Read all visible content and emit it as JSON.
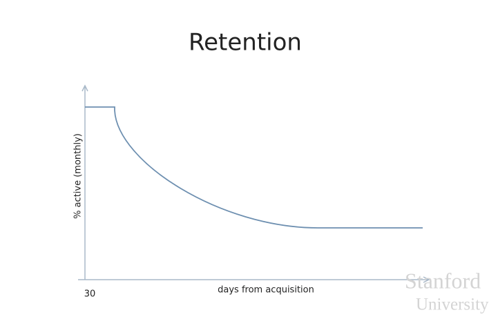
{
  "slide": {
    "title": "Retention",
    "y_axis_label": "% active (monthly)",
    "x_axis_label": "days from acquisition",
    "x_tick": "30",
    "watermark": [
      "Stanford",
      "University"
    ]
  }
}
